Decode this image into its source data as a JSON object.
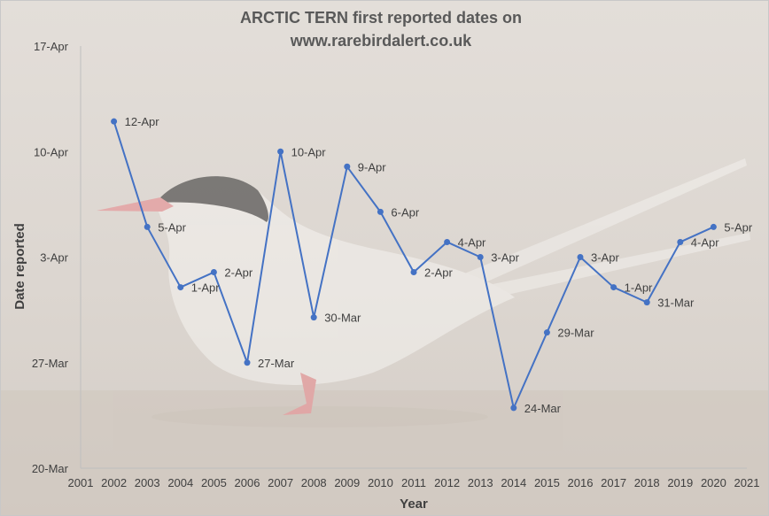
{
  "chart_data": {
    "type": "line",
    "title_lines": [
      "ARCTIC TERN first reported dates on",
      "www.rarebirdalert.co.uk"
    ],
    "xlabel": "Year",
    "ylabel": "Date reported",
    "x_ticks": [
      "2001",
      "2002",
      "2003",
      "2004",
      "2005",
      "2006",
      "2007",
      "2008",
      "2009",
      "2010",
      "2011",
      "2012",
      "2013",
      "2014",
      "2015",
      "2016",
      "2017",
      "2018",
      "2019",
      "2020",
      "2021"
    ],
    "xlim": [
      2001,
      2021
    ],
    "y_ticks": [
      "20-Mar",
      "27-Mar",
      "3-Apr",
      "10-Apr",
      "17-Apr"
    ],
    "ylim": [
      "20-Mar",
      "17-Apr"
    ],
    "grid": false,
    "series": [
      {
        "color": "#4472c4",
        "x": [
          2002,
          2003,
          2004,
          2005,
          2006,
          2007,
          2008,
          2009,
          2010,
          2011,
          2012,
          2013,
          2014,
          2015,
          2016,
          2017,
          2018,
          2019,
          2020
        ],
        "y": [
          "12-Apr",
          "5-Apr",
          "1-Apr",
          "2-Apr",
          "27-Mar",
          "10-Apr",
          "30-Mar",
          "9-Apr",
          "6-Apr",
          "2-Apr",
          "4-Apr",
          "3-Apr",
          "24-Mar",
          "29-Mar",
          "3-Apr",
          "1-Apr",
          "31-Mar",
          "4-Apr",
          "5-Apr"
        ],
        "labels": [
          "12-Apr",
          "5-Apr",
          "1-Apr",
          "2-Apr",
          "27-Mar",
          "10-Apr",
          "30-Mar",
          "9-Apr",
          "6-Apr",
          "2-Apr",
          "4-Apr",
          "3-Apr",
          "24-Mar",
          "29-Mar",
          "3-Apr",
          "1-Apr",
          "31-Mar",
          "4-Apr",
          "5-Apr"
        ]
      }
    ]
  },
  "background": {
    "image": "arctic-tern-photo",
    "bird_color": "#f4f2ef",
    "cap_color": "#2b2b2b",
    "beak_color": "#e8868a"
  }
}
